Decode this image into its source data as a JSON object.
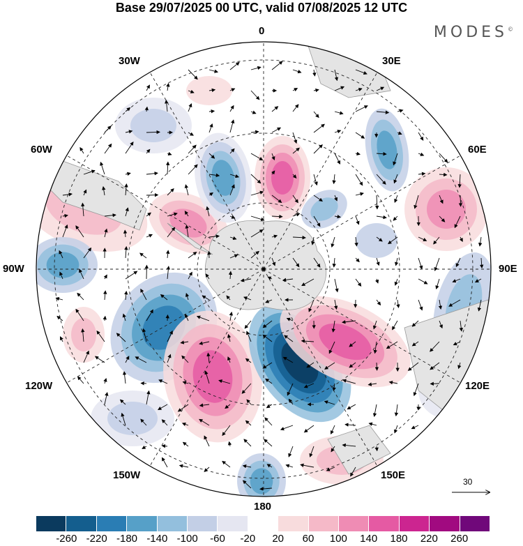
{
  "title": "Base 29/07/2025 00 UTC, valid 07/08/2025 12 UTC",
  "logo": "MODES",
  "logo_mark": "©",
  "longitude_labels": {
    "n0": "0",
    "n30e": "30E",
    "n60e": "60E",
    "n90e": "90E",
    "n120e": "120E",
    "n150e": "150E",
    "n180": "180",
    "n150w": "150W",
    "n120w": "120W",
    "n90w": "90W",
    "n60w": "60W",
    "n30w": "30W"
  },
  "vector_scale": {
    "value": "30"
  },
  "colorbar": {
    "tick_labels": [
      "-260",
      "-220",
      "-180",
      "-140",
      "-100",
      "-60",
      "-20",
      "20",
      "60",
      "100",
      "140",
      "180",
      "220",
      "260"
    ],
    "colors": [
      "#0b3a5e",
      "#145e8e",
      "#2a7db4",
      "#56a0c8",
      "#93bfdd",
      "#c3cfe6",
      "#e5e6f1",
      "#ffffff",
      "#f8dcdd",
      "#f5b9c8",
      "#ef8cb4",
      "#e55aa3",
      "#cc2590",
      "#a10a80",
      "#70087a"
    ]
  },
  "colors": {
    "land": "#e4e4e4",
    "coast": "#9a9a9a",
    "grid": "#222222"
  }
}
